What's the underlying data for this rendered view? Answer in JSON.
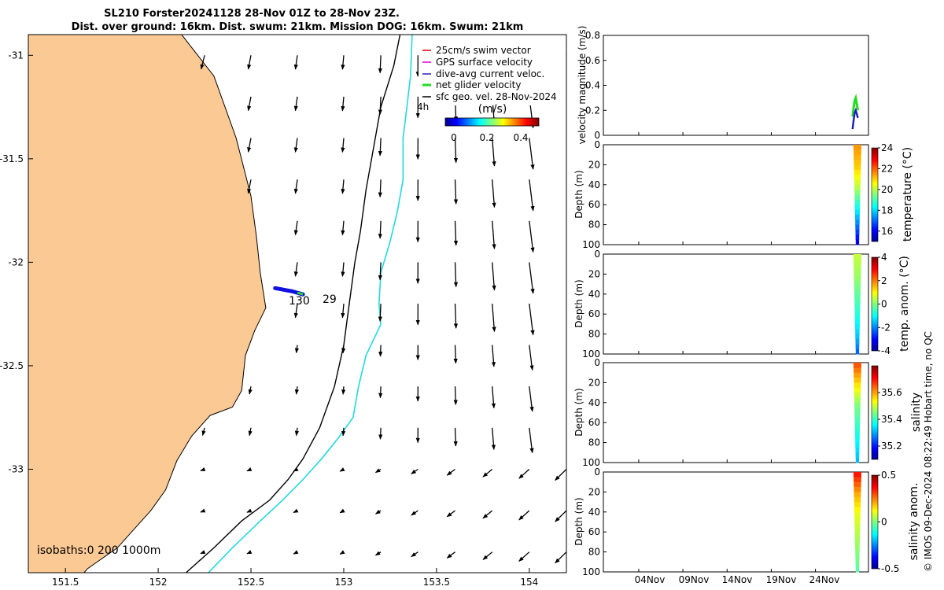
{
  "title": {
    "line1": "SL210 Forster20241128 28-Nov 01Z to 28-Nov 23Z.",
    "line2": "Dist. over ground: 16km. Dist. swum: 21km. Mission DOG: 16km. Swum: 21km"
  },
  "colors": {
    "land": "#FBC994",
    "coast": "#000000",
    "isobath200": "#000000",
    "isobath1000": "#22D8E0",
    "track": "#1010E0",
    "net_velocity": "#22DD22",
    "swim_vector": "#E00000",
    "gps_velocity": "#E000E0",
    "dive_current": "#2020C0"
  },
  "chart_data": [
    {
      "type": "scatter",
      "panel": "map",
      "xlim": [
        151.3,
        154.2
      ],
      "ylim": [
        -33.5,
        -30.9
      ],
      "xticks": [
        "151.5",
        "152",
        "152.5",
        "153",
        "153.5",
        "154"
      ],
      "yticks": [
        "-31",
        "-31.5",
        "-32",
        "-32.5",
        "-33"
      ],
      "legend": {
        "items": [
          "25cm/s swim vector",
          "GPS surface velocity",
          "dive-avg current veloc.",
          "net glider velocity",
          "sfc geo. vel. 28-Nov-2024"
        ],
        "arrow_scale_label": "4h"
      },
      "colorbar": {
        "label": "(m/s)",
        "ticks": [
          "0",
          "0.2",
          "0.4"
        ],
        "range": [
          0,
          0.5
        ]
      },
      "isobath_label": "isobaths:0   200  1000m",
      "track_labels": [
        "130",
        "29"
      ],
      "track": {
        "lon": [
          152.63,
          152.66,
          152.69,
          152.72,
          152.75,
          152.78
        ],
        "lat": [
          -32.125,
          -32.13,
          -32.135,
          -32.14,
          -32.147,
          -32.155
        ]
      },
      "coast": {
        "lon": [
          151.3,
          152.1,
          152.3,
          152.42,
          152.5,
          152.53,
          152.55,
          152.58,
          152.52,
          152.47,
          152.45,
          152.4,
          152.28,
          152.18,
          152.1,
          152.04,
          151.96,
          151.88,
          151.78,
          151.62,
          151.6
        ],
        "lat": [
          -30.87,
          -30.87,
          -31.1,
          -31.4,
          -31.68,
          -31.88,
          -32.05,
          -32.22,
          -32.33,
          -32.45,
          -32.62,
          -32.7,
          -32.74,
          -32.84,
          -32.96,
          -33.1,
          -33.2,
          -33.28,
          -33.38,
          -33.48,
          -33.5
        ]
      },
      "isobath_200": {
        "lon": [
          153.31,
          153.27,
          153.2,
          153.16,
          153.12,
          153.09,
          153.06,
          153.03,
          153.0,
          152.95,
          152.87,
          152.78,
          152.7,
          152.6,
          152.45,
          152.3,
          152.15
        ],
        "lat": [
          -30.87,
          -31.05,
          -31.25,
          -31.45,
          -31.65,
          -31.85,
          -32.0,
          -32.2,
          -32.4,
          -32.6,
          -32.8,
          -32.95,
          -33.05,
          -33.15,
          -33.25,
          -33.38,
          -33.5
        ]
      },
      "isobath_1000": {
        "lon": [
          153.37,
          153.36,
          153.34,
          153.32,
          153.32,
          153.29,
          153.25,
          153.2,
          153.19,
          153.2,
          153.12,
          153.08,
          153.05,
          152.97,
          152.88,
          152.78,
          152.67,
          152.55,
          152.4,
          152.27
        ],
        "lat": [
          -30.87,
          -31.1,
          -31.25,
          -31.4,
          -31.6,
          -31.75,
          -31.9,
          -32.05,
          -32.2,
          -32.3,
          -32.45,
          -32.6,
          -32.75,
          -32.85,
          -32.95,
          -33.05,
          -33.15,
          -33.25,
          -33.38,
          -33.5
        ]
      },
      "velocity_vectors": {
        "lon": [
          152.25,
          152.5,
          152.75,
          153.0,
          153.2,
          153.4,
          153.6,
          153.8,
          154.0,
          154.2
        ],
        "lat": [
          -31.0,
          -31.2,
          -31.4,
          -31.6,
          -31.8,
          -32.0,
          -32.2,
          -32.4,
          -32.6,
          -32.8,
          -33.0,
          -33.2,
          -33.4
        ]
      }
    },
    {
      "type": "line",
      "panel": "velocity",
      "ylabel": "velocity magnitude (m/s)",
      "ylim": [
        0,
        0.8
      ],
      "yticks": [
        "0",
        "0.2",
        "0.4",
        "0.6",
        "0.8"
      ],
      "series": [
        {
          "name": "net glider velocity",
          "values": [
            0.15,
            0.22,
            0.28,
            0.3,
            0.25,
            0.2
          ]
        },
        {
          "name": "dive-avg current veloc.",
          "values": [
            0.05,
            0.12,
            0.18,
            0.2,
            0.17,
            0.14
          ]
        }
      ]
    },
    {
      "type": "heatmap",
      "panel": "temperature",
      "ylabel": "Depth (m)",
      "cbar_label": "temperature (°C)",
      "ylim": [
        0,
        100
      ],
      "yticks": [
        "0",
        "20",
        "40",
        "60",
        "80",
        "100"
      ],
      "clim": [
        15,
        24
      ],
      "cticks": [
        "16",
        "18",
        "20",
        "22",
        "24"
      ],
      "profile": {
        "depth": [
          0,
          20,
          40,
          60,
          80,
          100
        ],
        "values": [
          21.5,
          21.0,
          20.0,
          18.5,
          17.0,
          15.5
        ]
      }
    },
    {
      "type": "heatmap",
      "panel": "temperature anomaly",
      "ylabel": "Depth (m)",
      "cbar_label": "temp. anom. (°C)",
      "ylim": [
        0,
        100
      ],
      "yticks": [
        "0",
        "20",
        "40",
        "60",
        "80",
        "100"
      ],
      "clim": [
        -4,
        4
      ],
      "cticks": [
        "-4",
        "-2",
        "0",
        "2",
        "4"
      ],
      "profile": {
        "depth": [
          0,
          20,
          40,
          60,
          80,
          100
        ],
        "values": [
          0.5,
          0.2,
          -0.3,
          -0.8,
          -1.5,
          -2.5
        ]
      }
    },
    {
      "type": "heatmap",
      "panel": "salinity",
      "ylabel": "Depth (m)",
      "cbar_label": "salinity",
      "ylim": [
        0,
        100
      ],
      "yticks": [
        "0",
        "20",
        "40",
        "60",
        "80",
        "100"
      ],
      "clim": [
        35.1,
        35.8
      ],
      "cticks": [
        "35.2",
        "35.4",
        "35.6"
      ],
      "profile": {
        "depth": [
          0,
          20,
          40,
          60,
          80,
          100
        ],
        "values": [
          35.65,
          35.55,
          35.45,
          35.4,
          35.35,
          35.3
        ]
      }
    },
    {
      "type": "heatmap",
      "panel": "salinity anomaly",
      "ylabel": "Depth (m)",
      "cbar_label": "salinity anom.",
      "ylim": [
        0,
        100
      ],
      "yticks": [
        "0",
        "20",
        "40",
        "60",
        "80",
        "100"
      ],
      "clim": [
        -0.5,
        0.5
      ],
      "cticks": [
        "-0.5",
        "0",
        "0.5"
      ],
      "profile": {
        "depth": [
          0,
          20,
          40,
          60,
          80,
          100
        ],
        "values": [
          0.35,
          0.2,
          0.1,
          0.05,
          0.0,
          -0.05
        ]
      }
    }
  ],
  "time_axis": {
    "labels": [
      "04Nov",
      "09Nov",
      "14Nov",
      "19Nov",
      "24Nov"
    ],
    "day_positions": [
      4,
      9,
      14,
      19,
      24
    ],
    "range_days": [
      0,
      30
    ]
  },
  "footer": "© IMOS 09-Dec-2024 08:22:49 Hobart time, no QC"
}
